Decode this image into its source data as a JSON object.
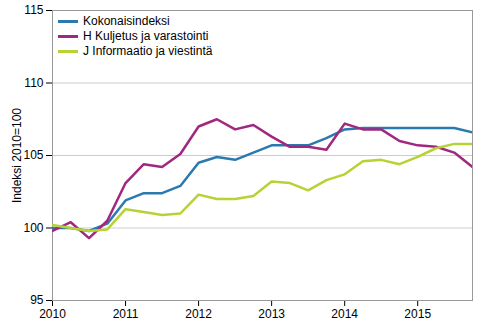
{
  "chart_data": {
    "type": "line",
    "y_label": "Indeksi 2010=100",
    "x": [
      2010,
      2010.25,
      2010.5,
      2010.75,
      2011,
      2011.25,
      2011.5,
      2011.75,
      2012,
      2012.25,
      2012.5,
      2012.75,
      2013,
      2013.25,
      2013.5,
      2013.75,
      2014,
      2014.25,
      2014.5,
      2014.75,
      2015,
      2015.25,
      2015.5,
      2015.75
    ],
    "series": [
      {
        "name": "Kokonaisindeksi",
        "color": "#2a7ab0",
        "values": [
          100.0,
          100.0,
          99.8,
          100.3,
          101.9,
          102.4,
          102.4,
          102.9,
          104.5,
          104.9,
          104.7,
          105.2,
          105.7,
          105.7,
          105.7,
          106.2,
          106.8,
          106.9,
          106.9,
          106.9,
          106.9,
          106.9,
          106.9,
          106.6
        ]
      },
      {
        "name": "H Kuljetus ja varastointi",
        "color": "#a0287f",
        "values": [
          99.8,
          100.4,
          99.3,
          100.5,
          103.1,
          104.4,
          104.2,
          105.1,
          107.0,
          107.5,
          106.8,
          107.1,
          106.3,
          105.6,
          105.6,
          105.4,
          107.2,
          106.8,
          106.8,
          106.0,
          105.7,
          105.6,
          105.2,
          104.2
        ]
      },
      {
        "name": "J Informaatio ja viestintä",
        "color": "#b5d334",
        "values": [
          100.2,
          100.0,
          99.8,
          99.9,
          101.3,
          101.1,
          100.9,
          101.0,
          102.3,
          102.0,
          102.0,
          102.2,
          103.2,
          103.1,
          102.6,
          103.3,
          103.7,
          104.6,
          104.7,
          104.4,
          104.9,
          105.5,
          105.8,
          105.8
        ]
      }
    ],
    "xlim": [
      2010,
      2015.75
    ],
    "xticks": [
      2010,
      2011,
      2012,
      2013,
      2014,
      2015
    ],
    "ylim": [
      95,
      115
    ],
    "yticks": [
      95,
      100,
      105,
      110,
      115
    ],
    "grid": true,
    "legend": "top-left"
  }
}
